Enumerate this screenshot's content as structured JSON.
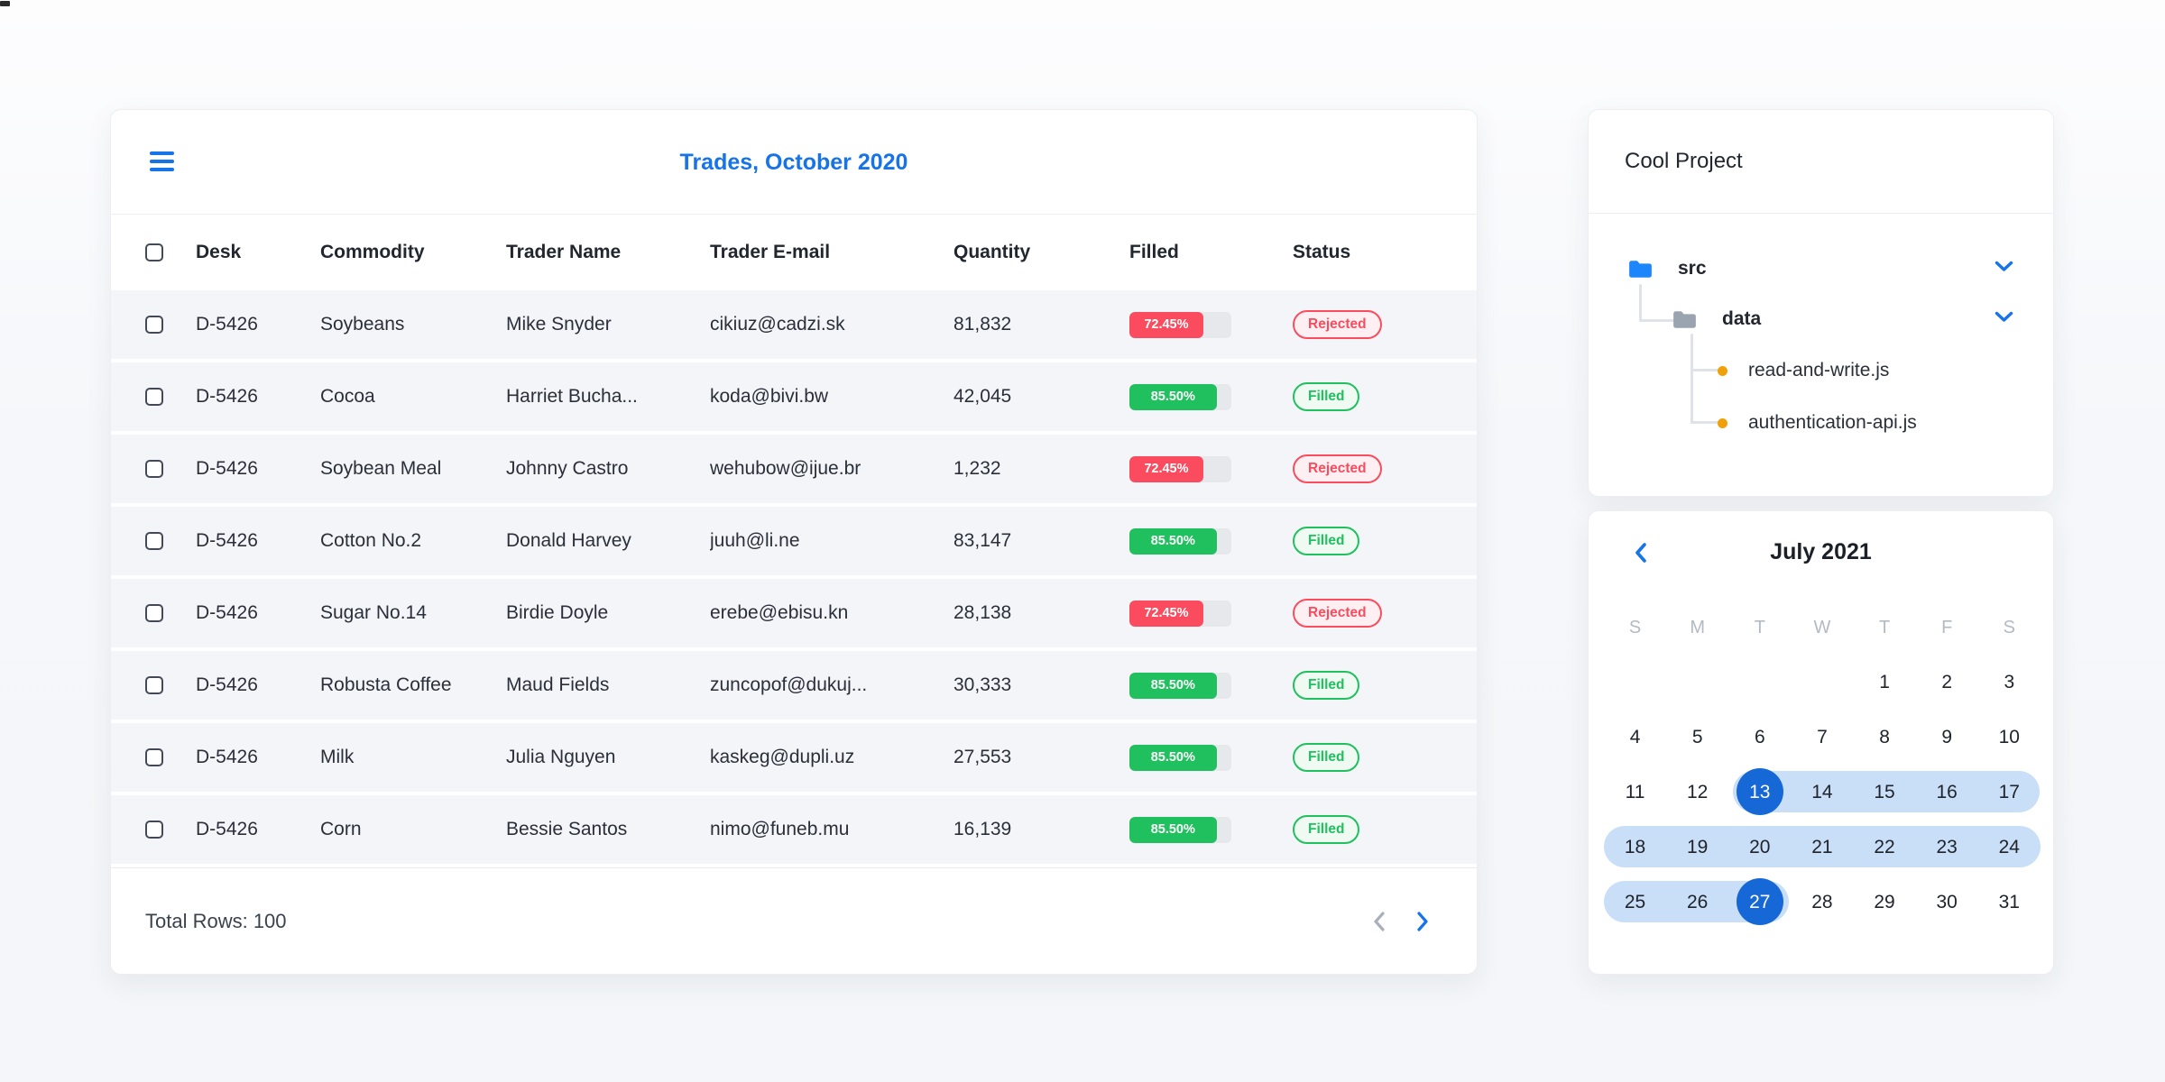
{
  "trades": {
    "title": "Trades, October 2020",
    "columns": {
      "desk": "Desk",
      "commodity": "Commodity",
      "trader": "Trader Name",
      "email": "Trader E-mail",
      "quantity": "Quantity",
      "filled": "Filled",
      "status": "Status"
    },
    "rows": [
      {
        "desk": "D-5426",
        "commodity": "Soybeans",
        "trader": "Mike Snyder",
        "email": "cikiuz@cadzi.sk",
        "quantity": "81,832",
        "filled_label": "72.45%",
        "filled_value": 72.45,
        "status": "Rejected",
        "status_type": "rejected"
      },
      {
        "desk": "D-5426",
        "commodity": "Cocoa",
        "trader": "Harriet Bucha...",
        "email": "koda@bivi.bw",
        "quantity": "42,045",
        "filled_label": "85.50%",
        "filled_value": 85.5,
        "status": "Filled",
        "status_type": "filled"
      },
      {
        "desk": "D-5426",
        "commodity": "Soybean Meal",
        "trader": "Johnny Castro",
        "email": "wehubow@ijue.br",
        "quantity": "1,232",
        "filled_label": "72.45%",
        "filled_value": 72.45,
        "status": "Rejected",
        "status_type": "rejected"
      },
      {
        "desk": "D-5426",
        "commodity": "Cotton No.2",
        "trader": "Donald Harvey",
        "email": "juuh@li.ne",
        "quantity": "83,147",
        "filled_label": "85.50%",
        "filled_value": 85.5,
        "status": "Filled",
        "status_type": "filled"
      },
      {
        "desk": "D-5426",
        "commodity": "Sugar No.14",
        "trader": "Birdie Doyle",
        "email": "erebe@ebisu.kn",
        "quantity": "28,138",
        "filled_label": "72.45%",
        "filled_value": 72.45,
        "status": "Rejected",
        "status_type": "rejected"
      },
      {
        "desk": "D-5426",
        "commodity": "Robusta Coffee",
        "trader": "Maud Fields",
        "email": "zuncopof@dukuj...",
        "quantity": "30,333",
        "filled_label": "85.50%",
        "filled_value": 85.5,
        "status": "Filled",
        "status_type": "filled"
      },
      {
        "desk": "D-5426",
        "commodity": "Milk",
        "trader": "Julia Nguyen",
        "email": "kaskeg@dupli.uz",
        "quantity": "27,553",
        "filled_label": "85.50%",
        "filled_value": 85.5,
        "status": "Filled",
        "status_type": "filled"
      },
      {
        "desk": "D-5426",
        "commodity": "Corn",
        "trader": "Bessie Santos",
        "email": "nimo@funeb.mu",
        "quantity": "16,139",
        "filled_label": "85.50%",
        "filled_value": 85.5,
        "status": "Filled",
        "status_type": "filled"
      }
    ],
    "footer": {
      "total_label": "Total Rows: 100"
    }
  },
  "project": {
    "title": "Cool Project",
    "root_folder": "src",
    "sub_folder": "data",
    "files": [
      "read-and-write.js",
      "authentication-api.js"
    ]
  },
  "calendar": {
    "title": "July 2021",
    "weekdays": [
      "S",
      "M",
      "T",
      "W",
      "T",
      "F",
      "S"
    ],
    "days": [
      "1",
      "2",
      "3",
      "4",
      "5",
      "6",
      "7",
      "8",
      "9",
      "10",
      "11",
      "12",
      "13",
      "14",
      "15",
      "16",
      "17",
      "18",
      "19",
      "20",
      "21",
      "22",
      "23",
      "24",
      "25",
      "26",
      "27",
      "28",
      "29",
      "30",
      "31"
    ],
    "selected_start": "13",
    "selected_end": "27"
  },
  "colors": {
    "accent_blue": "#1673e8",
    "status_red": "#fa4c5e",
    "status_green": "#21c05e",
    "range_fill": "#c9def7",
    "selected_day": "#1568d6",
    "file_dot_orange": "#f0a10a"
  }
}
